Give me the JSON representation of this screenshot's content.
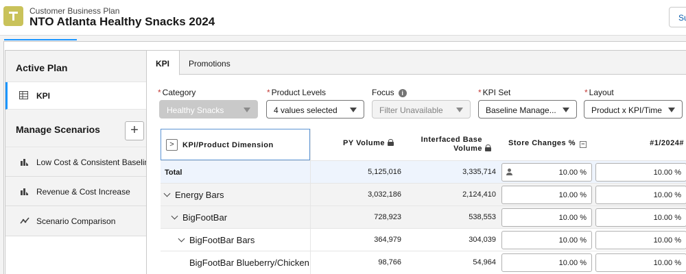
{
  "header": {
    "subtitle": "Customer Business Plan",
    "title": "NTO Atlanta Healthy Snacks 2024",
    "button_label": "Su"
  },
  "sidebar": {
    "active_plan_label": "Active Plan",
    "kpi_label": "KPI",
    "manage_label": "Manage Scenarios",
    "add_label": "+",
    "items": [
      {
        "label": "Low Cost & Consistent Baseline",
        "icon": "scenario-chart-icon"
      },
      {
        "label": "Revenue & Cost Increase",
        "icon": "scenario-chart-icon"
      },
      {
        "label": "Scenario Comparison",
        "icon": "line-chart-icon"
      }
    ]
  },
  "tabs": [
    {
      "label": "KPI",
      "active": true
    },
    {
      "label": "Promotions",
      "active": false
    }
  ],
  "filters": {
    "category": {
      "label": "Category",
      "value": "Healthy Snacks",
      "required": true
    },
    "product_levels": {
      "label": "Product Levels",
      "value": "4 values selected",
      "required": true
    },
    "focus": {
      "label": "Focus",
      "value": "Filter Unavailable",
      "required": false
    },
    "kpi_set": {
      "label": "KPI Set",
      "value": "Baseline Manage...",
      "required": true
    },
    "layout": {
      "label": "Layout",
      "value": "Product x KPI/Time",
      "required": true
    }
  },
  "grid": {
    "dim_header": "KPI/Product Dimension",
    "expand_symbol": ">",
    "col_py": "PY Volume",
    "col_base_1": "Interfaced Base",
    "col_base_2": "Volume",
    "col_store": "Store Changes %",
    "col_period": "#1/2024#",
    "rows": [
      {
        "name": "Total",
        "py": "5,125,016",
        "base": "3,335,714",
        "store": "10.00 %",
        "period": "10.00 %"
      },
      {
        "name": "Energy Bars",
        "py": "3,032,186",
        "base": "2,124,410",
        "store": "10.00 %",
        "period": "10.00 %"
      },
      {
        "name": "BigFootBar",
        "py": "728,923",
        "base": "538,553",
        "store": "10.00 %",
        "period": "10.00 %"
      },
      {
        "name": "BigFootBar Bars",
        "py": "364,979",
        "base": "304,039",
        "store": "10.00 %",
        "period": "10.00 %"
      },
      {
        "name": "BigFootBar Blueberry/Chicken",
        "py": "98,766",
        "base": "54,964",
        "store": "10.00 %",
        "period": "10.00 %"
      }
    ]
  },
  "colors": {
    "accent": "#1b96ff",
    "app_icon": "#c9c25a",
    "total_row_bg": "#eef4fd",
    "group_row_bg": "#f3f3f3"
  }
}
